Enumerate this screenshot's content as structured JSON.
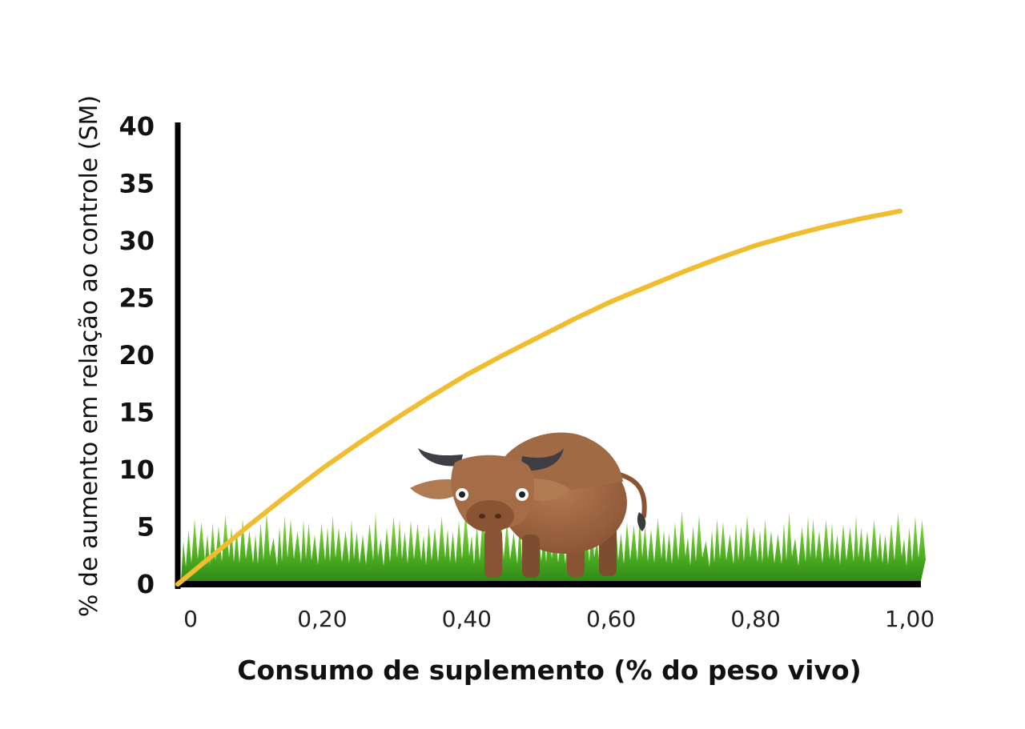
{
  "chart_data": {
    "type": "line",
    "title": "",
    "xlabel": "Consumo de suplemento (% do peso vivo)",
    "ylabel": "% de aumento em relação ao controle (SM)",
    "x_tick_labels": [
      "0",
      "0,20",
      "0,40",
      "0,60",
      "0,80",
      "1,00"
    ],
    "x_tick_values": [
      0,
      0.2,
      0.4,
      0.6,
      0.8,
      1.0
    ],
    "y_tick_labels": [
      "0",
      "5",
      "10",
      "15",
      "20",
      "25",
      "30",
      "35",
      "40"
    ],
    "y_tick_values": [
      0,
      5,
      10,
      15,
      20,
      25,
      30,
      35,
      40
    ],
    "xlim": [
      0,
      1.0
    ],
    "ylim": [
      0,
      40
    ],
    "grid": false,
    "series": [
      {
        "x": [
          0,
          0.05,
          0.1,
          0.15,
          0.2,
          0.25,
          0.3,
          0.35,
          0.4,
          0.45,
          0.5,
          0.55,
          0.6,
          0.65,
          0.7,
          0.75,
          0.8,
          0.85,
          0.9,
          0.95,
          1.0
        ],
        "values": [
          0,
          2.6,
          5.2,
          7.7,
          10.1,
          12.3,
          14.4,
          16.4,
          18.3,
          20.0,
          21.6,
          23.2,
          24.7,
          26.0,
          27.3,
          28.5,
          29.6,
          30.5,
          31.3,
          32.0,
          32.6
        ]
      }
    ],
    "colors": {
      "line": "#f0bc30",
      "axis": "#000000",
      "grass": "#56b825",
      "animal": "#9a6240"
    },
    "decoration": {
      "illustration": "bull-in-grass"
    }
  }
}
